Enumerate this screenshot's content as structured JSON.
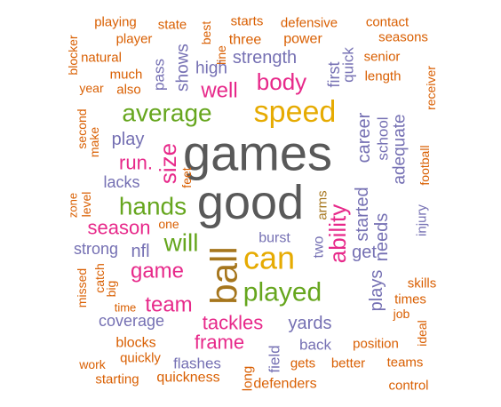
{
  "palette": {
    "orange": "#d95f02",
    "purple": "#7570b3",
    "magenta": "#e7298a",
    "green": "#66a61e",
    "gold": "#e6ab02",
    "brown": "#a6761d",
    "gray": "#595959"
  },
  "words": [
    {
      "text": "games",
      "color": "gray"
    },
    {
      "text": "good",
      "color": "gray"
    },
    {
      "text": "speed",
      "color": "gold"
    },
    {
      "text": "average",
      "color": "green"
    },
    {
      "text": "ball",
      "color": "brown"
    },
    {
      "text": "can",
      "color": "gold"
    },
    {
      "text": "played",
      "color": "green"
    },
    {
      "text": "hands",
      "color": "green"
    },
    {
      "text": "will",
      "color": "green"
    },
    {
      "text": "ability",
      "color": "magenta"
    },
    {
      "text": "body",
      "color": "magenta"
    },
    {
      "text": "well",
      "color": "magenta"
    },
    {
      "text": "size",
      "color": "magenta"
    },
    {
      "text": "run.",
      "color": "magenta"
    },
    {
      "text": "game",
      "color": "magenta"
    },
    {
      "text": "team",
      "color": "magenta"
    },
    {
      "text": "season",
      "color": "magenta"
    },
    {
      "text": "tackles",
      "color": "magenta"
    },
    {
      "text": "frame",
      "color": "magenta"
    },
    {
      "text": "strength",
      "color": "purple"
    },
    {
      "text": "yards",
      "color": "purple"
    },
    {
      "text": "play",
      "color": "purple"
    },
    {
      "text": "lacks",
      "color": "purple"
    },
    {
      "text": "nfl",
      "color": "purple"
    },
    {
      "text": "strong",
      "color": "purple"
    },
    {
      "text": "coverage",
      "color": "purple"
    },
    {
      "text": "high",
      "color": "purple"
    },
    {
      "text": "shows",
      "color": "purple"
    },
    {
      "text": "pass",
      "color": "purple"
    },
    {
      "text": "first",
      "color": "purple"
    },
    {
      "text": "quick",
      "color": "purple"
    },
    {
      "text": "career",
      "color": "purple"
    },
    {
      "text": "school",
      "color": "purple"
    },
    {
      "text": "adequate",
      "color": "purple"
    },
    {
      "text": "started",
      "color": "purple"
    },
    {
      "text": "needs",
      "color": "purple"
    },
    {
      "text": "get",
      "color": "purple"
    },
    {
      "text": "plays",
      "color": "purple"
    },
    {
      "text": "burst",
      "color": "purple"
    },
    {
      "text": "two",
      "color": "purple"
    },
    {
      "text": "back",
      "color": "purple"
    },
    {
      "text": "flashes",
      "color": "purple"
    },
    {
      "text": "field",
      "color": "purple"
    },
    {
      "text": "injury",
      "color": "purple"
    },
    {
      "text": "arms",
      "color": "brown"
    },
    {
      "text": "feet",
      "color": "orange"
    },
    {
      "text": "one",
      "color": "orange"
    },
    {
      "text": "playing",
      "color": "orange"
    },
    {
      "text": "state",
      "color": "orange"
    },
    {
      "text": "best",
      "color": "orange"
    },
    {
      "text": "starts",
      "color": "orange"
    },
    {
      "text": "defensive",
      "color": "orange"
    },
    {
      "text": "contact",
      "color": "orange"
    },
    {
      "text": "player",
      "color": "orange"
    },
    {
      "text": "three",
      "color": "orange"
    },
    {
      "text": "power",
      "color": "orange"
    },
    {
      "text": "seasons",
      "color": "orange"
    },
    {
      "text": "line",
      "color": "orange"
    },
    {
      "text": "blocker",
      "color": "orange"
    },
    {
      "text": "natural",
      "color": "orange"
    },
    {
      "text": "senior",
      "color": "orange"
    },
    {
      "text": "much",
      "color": "orange"
    },
    {
      "text": "length",
      "color": "orange"
    },
    {
      "text": "year",
      "color": "orange"
    },
    {
      "text": "also",
      "color": "orange"
    },
    {
      "text": "receiver",
      "color": "orange"
    },
    {
      "text": "second",
      "color": "orange"
    },
    {
      "text": "make",
      "color": "orange"
    },
    {
      "text": "football",
      "color": "orange"
    },
    {
      "text": "zone",
      "color": "orange"
    },
    {
      "text": "level",
      "color": "orange"
    },
    {
      "text": "missed",
      "color": "orange"
    },
    {
      "text": "catch",
      "color": "orange"
    },
    {
      "text": "big",
      "color": "orange"
    },
    {
      "text": "time",
      "color": "orange"
    },
    {
      "text": "skills",
      "color": "orange"
    },
    {
      "text": "times",
      "color": "orange"
    },
    {
      "text": "job",
      "color": "orange"
    },
    {
      "text": "ideal",
      "color": "orange"
    },
    {
      "text": "blocks",
      "color": "orange"
    },
    {
      "text": "position",
      "color": "orange"
    },
    {
      "text": "quickly",
      "color": "orange"
    },
    {
      "text": "work",
      "color": "orange"
    },
    {
      "text": "gets",
      "color": "orange"
    },
    {
      "text": "better",
      "color": "orange"
    },
    {
      "text": "teams",
      "color": "orange"
    },
    {
      "text": "starting",
      "color": "orange"
    },
    {
      "text": "quickness",
      "color": "orange"
    },
    {
      "text": "long",
      "color": "orange"
    },
    {
      "text": "defenders",
      "color": "orange"
    },
    {
      "text": "control",
      "color": "orange"
    }
  ]
}
